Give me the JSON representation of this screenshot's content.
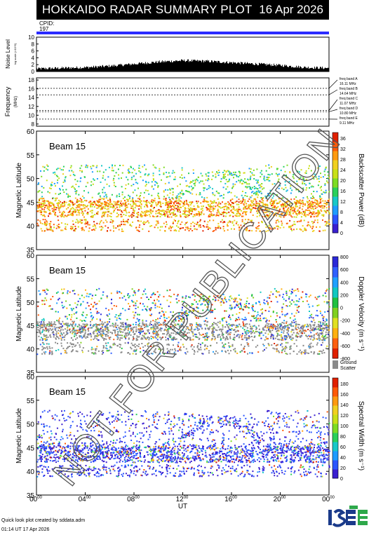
{
  "header": {
    "title": "HOKKAIDO RADAR SUMMARY PLOT",
    "date": "16 Apr 2026"
  },
  "cpid": {
    "label": "CPID:",
    "value": "197"
  },
  "noise_panel": {
    "ylabel": "Noise Level",
    "ylabel_sub": "log scale (×10^5)",
    "yticks": [
      "0",
      "2",
      "4",
      "6",
      "8",
      "10"
    ]
  },
  "freq_panel": {
    "ylabel": "Frequency",
    "ylabel_sub": "(MHz)",
    "yticks": [
      "8",
      "10",
      "12",
      "14",
      "16",
      "18"
    ],
    "bands": [
      {
        "name": "freq band A",
        "freq": "16.11 MHz",
        "value": 16.11
      },
      {
        "name": "freq band B",
        "freq": "14.64 MHz",
        "value": 14.64
      },
      {
        "name": "freq band C",
        "freq": "11.07 MHz",
        "value": 11.07
      },
      {
        "name": "freq band D",
        "freq": "10.80 MHz",
        "value": 10.8
      },
      {
        "name": "freq band E",
        "freq": "9.11 MHz",
        "value": 9.11
      }
    ]
  },
  "panels": [
    {
      "beam": "Beam 15",
      "ylabel": "Magnetic Latitude",
      "yticks": [
        "35",
        "40",
        "45",
        "50",
        "55",
        "60"
      ],
      "colorbar_label": "Backscatter Power (dB)",
      "colorbar_ticks": [
        "0",
        "4",
        "8",
        "12",
        "16",
        "20",
        "24",
        "28",
        "32",
        "36"
      ]
    },
    {
      "beam": "Beam 15",
      "ylabel": "Magnetic Latitude",
      "yticks": [
        "35",
        "40",
        "45",
        "50",
        "55",
        "60"
      ],
      "colorbar_label": "Doppler Velocity (m s⁻¹)",
      "colorbar_ticks": [
        "800",
        "600",
        "400",
        "200",
        "0",
        "-200",
        "-400",
        "-600",
        "-800"
      ],
      "ground_label_1": "Ground",
      "ground_label_2": "Scatter"
    },
    {
      "beam": "Beam 15",
      "ylabel": "Magnetic Latitude",
      "yticks": [
        "35",
        "40",
        "45",
        "50",
        "55",
        "60"
      ],
      "colorbar_label": "Spectral Width (m s⁻¹)",
      "colorbar_ticks": [
        "0",
        "20",
        "40",
        "60",
        "80",
        "100",
        "120",
        "140",
        "160",
        "180"
      ]
    }
  ],
  "xaxis": {
    "label": "UT",
    "ticks": [
      "00",
      "04",
      "08",
      "12",
      "16",
      "20",
      "00"
    ],
    "tick_sup": "00"
  },
  "watermark": "NOT FOR PUBLICATION",
  "footer": {
    "line1": "Quick look plot created by sddata.adm",
    "line2": "01:14 UT 17 Apr 2026"
  },
  "logo": {
    "text": "ISEE"
  },
  "chart_data": [
    {
      "type": "line",
      "title": "Noise Level",
      "x": [
        0,
        2,
        4,
        6,
        8,
        10,
        12,
        14,
        16,
        18,
        20,
        22,
        24
      ],
      "values": [
        0.8,
        1.0,
        1.2,
        1.6,
        2.2,
        2.8,
        3.2,
        3.0,
        2.6,
        2.2,
        1.8,
        1.2,
        1.0
      ],
      "ylim": [
        0,
        10
      ],
      "xlim": [
        0,
        24
      ]
    },
    {
      "type": "heatmap",
      "title": "Backscatter Power (dB)",
      "xlabel": "UT",
      "ylabel": "Magnetic Latitude",
      "xlim": [
        0,
        24
      ],
      "ylim": [
        35,
        60
      ],
      "zlim": [
        0,
        36
      ],
      "features": [
        {
          "ut_start": 0,
          "ut_end": 24,
          "lat": 43.5,
          "value": 24
        },
        {
          "ut_start": 0,
          "ut_end": 24,
          "lat": 45,
          "value": 20
        },
        {
          "ut_start": 2,
          "ut_end": 22,
          "lat": 50,
          "value": 12
        }
      ]
    },
    {
      "type": "heatmap",
      "title": "Doppler Velocity (m s⁻¹)",
      "xlabel": "UT",
      "ylabel": "Magnetic Latitude",
      "xlim": [
        0,
        24
      ],
      "ylim": [
        35,
        60
      ],
      "zlim": [
        -800,
        800
      ]
    },
    {
      "type": "heatmap",
      "title": "Spectral Width (m s⁻¹)",
      "xlabel": "UT",
      "ylabel": "Magnetic Latitude",
      "xlim": [
        0,
        24
      ],
      "ylim": [
        35,
        60
      ],
      "zlim": [
        0,
        180
      ]
    }
  ]
}
